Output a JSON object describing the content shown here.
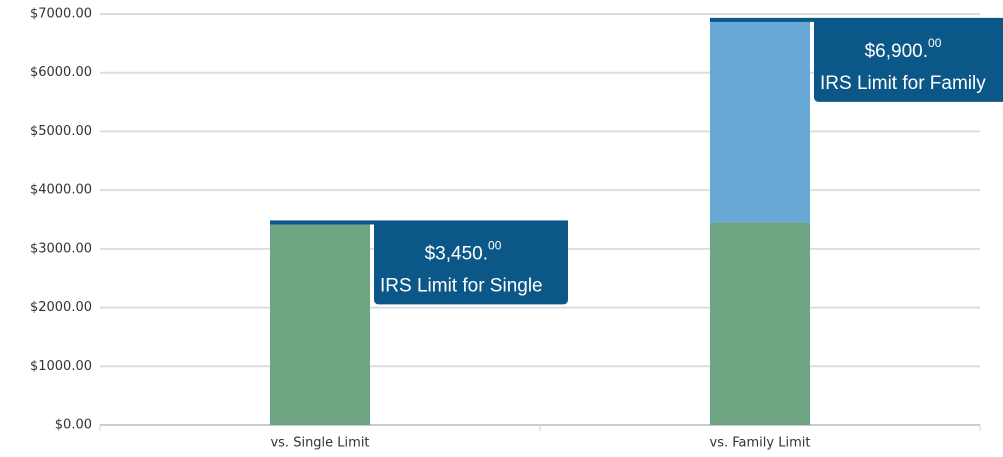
{
  "chart_data": {
    "type": "stacked_bar",
    "categories": [
      "vs. Single Limit",
      "vs. Family Limit"
    ],
    "series": [
      {
        "color": "#6fa482",
        "values": [
          3450,
          3450
        ]
      },
      {
        "color": "#68a8d6",
        "values": [
          null,
          3450
        ]
      }
    ],
    "ylim": [
      0,
      7000
    ],
    "yticks": [
      {
        "value": 0,
        "label": "$0.00"
      },
      {
        "value": 1000,
        "label": "$1000.00"
      },
      {
        "value": 2000,
        "label": "$2000.00"
      },
      {
        "value": 3000,
        "label": "$3000.00"
      },
      {
        "value": 4000,
        "label": "$4000.00"
      },
      {
        "value": 5000,
        "label": "$5000.00"
      },
      {
        "value": 6000,
        "label": "$6000.00"
      },
      {
        "value": 7000,
        "label": "$7000.00"
      }
    ],
    "grid": true,
    "annotation_color": "#0b5787",
    "annotations": [
      {
        "value": 3450,
        "amount": "$3,450.",
        "cents": "00",
        "text": "IRS Limit for Single"
      },
      {
        "value": 6900,
        "amount": "$6,900.",
        "cents": "00",
        "text": "IRS Limit for Family"
      }
    ]
  }
}
